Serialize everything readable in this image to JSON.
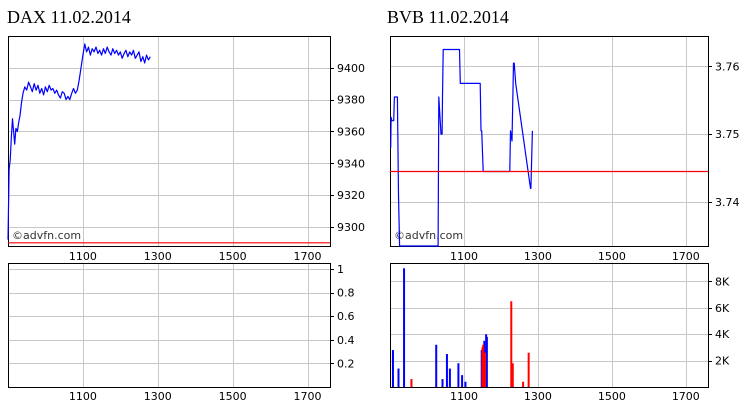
{
  "chart_data": [
    {
      "id": "dax-price",
      "type": "line",
      "title": "DAX 11.02.2014",
      "watermark": "©advfn.com",
      "x_ticks": [
        1100,
        1300,
        1500,
        1700
      ],
      "x_tick_labels": [
        "1100",
        "1300",
        "1500",
        "1700"
      ],
      "xlim": [
        900,
        1760
      ],
      "y_ticks": [
        9300,
        9320,
        9340,
        9360,
        9380,
        9400
      ],
      "y_tick_labels": [
        "9300",
        "9320",
        "9340",
        "9360",
        "9380",
        "9400"
      ],
      "ylim": [
        9288,
        9420
      ],
      "grid": true,
      "series": [
        {
          "color": "#0000ff",
          "x": [
            900,
            903,
            906,
            909,
            912,
            915,
            918,
            921,
            925,
            928,
            932,
            936,
            940,
            945,
            950,
            955,
            960,
            965,
            970,
            975,
            980,
            985,
            990,
            995,
            1000,
            1005,
            1010,
            1015,
            1020,
            1025,
            1030,
            1035,
            1040,
            1045,
            1050,
            1055,
            1060,
            1065,
            1070,
            1075,
            1080,
            1085,
            1090,
            1095,
            1100,
            1105,
            1110,
            1115,
            1120,
            1125,
            1130,
            1135,
            1140,
            1145,
            1150,
            1155,
            1160,
            1165,
            1170,
            1175,
            1180,
            1185,
            1190,
            1195,
            1200,
            1205,
            1210,
            1215,
            1220,
            1225,
            1230,
            1235,
            1240,
            1245,
            1250,
            1255,
            1260,
            1265,
            1270,
            1275,
            1280
          ],
          "y": [
            9292,
            9336,
            9342,
            9357,
            9368,
            9360,
            9352,
            9362,
            9360,
            9365,
            9370,
            9378,
            9384,
            9388,
            9386,
            9391,
            9388,
            9385,
            9390,
            9386,
            9389,
            9384,
            9387,
            9383,
            9388,
            9385,
            9389,
            9386,
            9387,
            9384,
            9386,
            9383,
            9381,
            9385,
            9384,
            9380,
            9382,
            9380,
            9384,
            9387,
            9384,
            9386,
            9392,
            9400,
            9408,
            9415,
            9410,
            9413,
            9408,
            9412,
            9410,
            9413,
            9409,
            9411,
            9408,
            9412,
            9409,
            9413,
            9410,
            9408,
            9412,
            9409,
            9411,
            9408,
            9410,
            9406,
            9409,
            9411,
            9407,
            9410,
            9408,
            9411,
            9406,
            9408,
            9410,
            9404,
            9407,
            9403,
            9408,
            9405,
            9407
          ]
        },
        {
          "color": "#ff0000",
          "x": [
            900,
            1760
          ],
          "y": [
            9290,
            9290
          ]
        }
      ]
    },
    {
      "id": "dax-volume",
      "type": "bar",
      "title": "",
      "x_ticks": [
        1100,
        1300,
        1500,
        1700
      ],
      "x_tick_labels": [
        "1100",
        "1300",
        "1500",
        "1700"
      ],
      "xlim": [
        900,
        1760
      ],
      "y_ticks": [
        0.2,
        0.4,
        0.6,
        0.8,
        1
      ],
      "y_tick_labels": [
        "0.2",
        "0.4",
        "0.6",
        "0.8",
        "1"
      ],
      "ylim": [
        0,
        1.05
      ],
      "grid": true,
      "series": []
    },
    {
      "id": "bvb-price",
      "type": "line",
      "title": "BVB 11.02.2014",
      "watermark": "©advfn.com",
      "x_ticks": [
        1100,
        1300,
        1500,
        1700
      ],
      "x_tick_labels": [
        "1100",
        "1300",
        "1500",
        "1700"
      ],
      "xlim": [
        900,
        1760
      ],
      "y_ticks": [
        3.74,
        3.75,
        3.76
      ],
      "y_tick_labels": [
        "3.74",
        "3.75",
        "3.76"
      ],
      "ylim": [
        3.7335,
        3.7645
      ],
      "grid": true,
      "series": [
        {
          "color": "#0000ff",
          "x": [
            902,
            903,
            905,
            910,
            912,
            918,
            920,
            923,
            926,
            1030,
            1032,
            1038,
            1041,
            1042,
            1044,
            1048,
            1050,
            1088,
            1090,
            1102,
            1104,
            1144,
            1146,
            1148,
            1152,
            1155,
            1158,
            1224,
            1226,
            1230,
            1234,
            1236,
            1240,
            1280,
            1281,
            1285
          ],
          "y": [
            3.748,
            3.7525,
            3.752,
            3.752,
            3.7555,
            3.7555,
            3.7555,
            3.741,
            3.7335,
            3.7335,
            3.7555,
            3.75,
            3.75,
            3.7555,
            3.7625,
            3.7625,
            3.7625,
            3.7625,
            3.7575,
            3.7575,
            3.7575,
            3.7575,
            3.7505,
            3.7505,
            3.7445,
            3.7445,
            3.7445,
            3.7445,
            3.7505,
            3.749,
            3.7605,
            3.7605,
            3.7575,
            3.742,
            3.742,
            3.7505
          ]
        },
        {
          "color": "#ff0000",
          "x": [
            900,
            1760
          ],
          "y": [
            3.7445,
            3.7445
          ]
        }
      ]
    },
    {
      "id": "bvb-volume",
      "type": "bar",
      "title": "",
      "x_ticks": [
        1100,
        1300,
        1500,
        1700
      ],
      "x_tick_labels": [
        "1100",
        "1300",
        "1500",
        "1700"
      ],
      "xlim": [
        900,
        1760
      ],
      "y_ticks": [
        2000,
        4000,
        6000,
        8000
      ],
      "y_tick_labels": [
        "2K",
        "4K",
        "6K",
        "8K"
      ],
      "ylim": [
        0,
        9400
      ],
      "grid": true,
      "series": [
        {
          "color": "#0000ff",
          "x": [
            908,
            923,
            938,
            1025,
            1042,
            1054,
            1062,
            1085,
            1095,
            1104,
            1148,
            1155,
            1160,
            1162
          ],
          "values": [
            2800,
            1400,
            9000,
            3200,
            600,
            2500,
            1400,
            1800,
            900,
            400,
            2800,
            3500,
            4000,
            3800
          ]
        },
        {
          "color": "#ff0000",
          "x": [
            958,
            1150,
            1152,
            1157,
            1228,
            1232,
            1260,
            1275
          ],
          "values": [
            600,
            3000,
            3200,
            2600,
            6500,
            1800,
            400,
            2600
          ]
        }
      ]
    }
  ]
}
